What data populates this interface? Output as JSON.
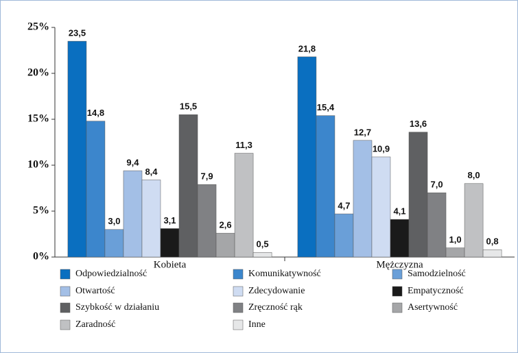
{
  "chart_data": {
    "type": "bar",
    "categories": [
      "Kobieta",
      "Mężczyzna"
    ],
    "ylim": [
      0,
      25
    ],
    "yticks": [
      {
        "value": 0,
        "label": "0%"
      },
      {
        "value": 5,
        "label": "5%"
      },
      {
        "value": 10,
        "label": "10%"
      },
      {
        "value": 15,
        "label": "15%"
      },
      {
        "value": 20,
        "label": "20%"
      },
      {
        "value": 25,
        "label": "25%"
      }
    ],
    "series": [
      {
        "name": "Odpowiedzialność",
        "color": "#0a6fc0",
        "values": [
          23.5,
          21.8
        ],
        "value_labels": [
          "23,5",
          "21,8"
        ]
      },
      {
        "name": "Komunikatywność",
        "color": "#3c86cc",
        "values": [
          14.8,
          15.4
        ],
        "value_labels": [
          "14,8",
          "15,4"
        ]
      },
      {
        "name": "Samodzielność",
        "color": "#6a9fd8",
        "values": [
          3.0,
          4.7
        ],
        "value_labels": [
          "3,0",
          "4,7"
        ]
      },
      {
        "name": "Otwartość",
        "color": "#a3bfe6",
        "values": [
          9.4,
          12.7
        ],
        "value_labels": [
          "9,4",
          "12,7"
        ]
      },
      {
        "name": "Zdecydowanie",
        "color": "#cfdcf2",
        "values": [
          8.4,
          10.9
        ],
        "value_labels": [
          "8,4",
          "10,9"
        ]
      },
      {
        "name": "Empatyczność",
        "color": "#1a1a1a",
        "values": [
          3.1,
          4.1
        ],
        "value_labels": [
          "3,1",
          "4,1"
        ]
      },
      {
        "name": "Szybkość w działaniu",
        "color": "#5f6062",
        "values": [
          15.5,
          13.6
        ],
        "value_labels": [
          "15,5",
          "13,6"
        ]
      },
      {
        "name": "Zręczność rąk",
        "color": "#808184",
        "values": [
          7.9,
          7.0
        ],
        "value_labels": [
          "7,9",
          "7,0"
        ]
      },
      {
        "name": "Asertywność",
        "color": "#a5a6a8",
        "values": [
          2.6,
          1.0
        ],
        "value_labels": [
          "2,6",
          "1,0"
        ]
      },
      {
        "name": "Zaradność",
        "color": "#c0c1c3",
        "values": [
          11.3,
          8.0
        ],
        "value_labels": [
          "11,3",
          "8,0"
        ]
      },
      {
        "name": "Inne",
        "color": "#e6e7e8",
        "values": [
          0.5,
          0.8
        ],
        "value_labels": [
          "0,5",
          "0,8"
        ]
      }
    ]
  }
}
